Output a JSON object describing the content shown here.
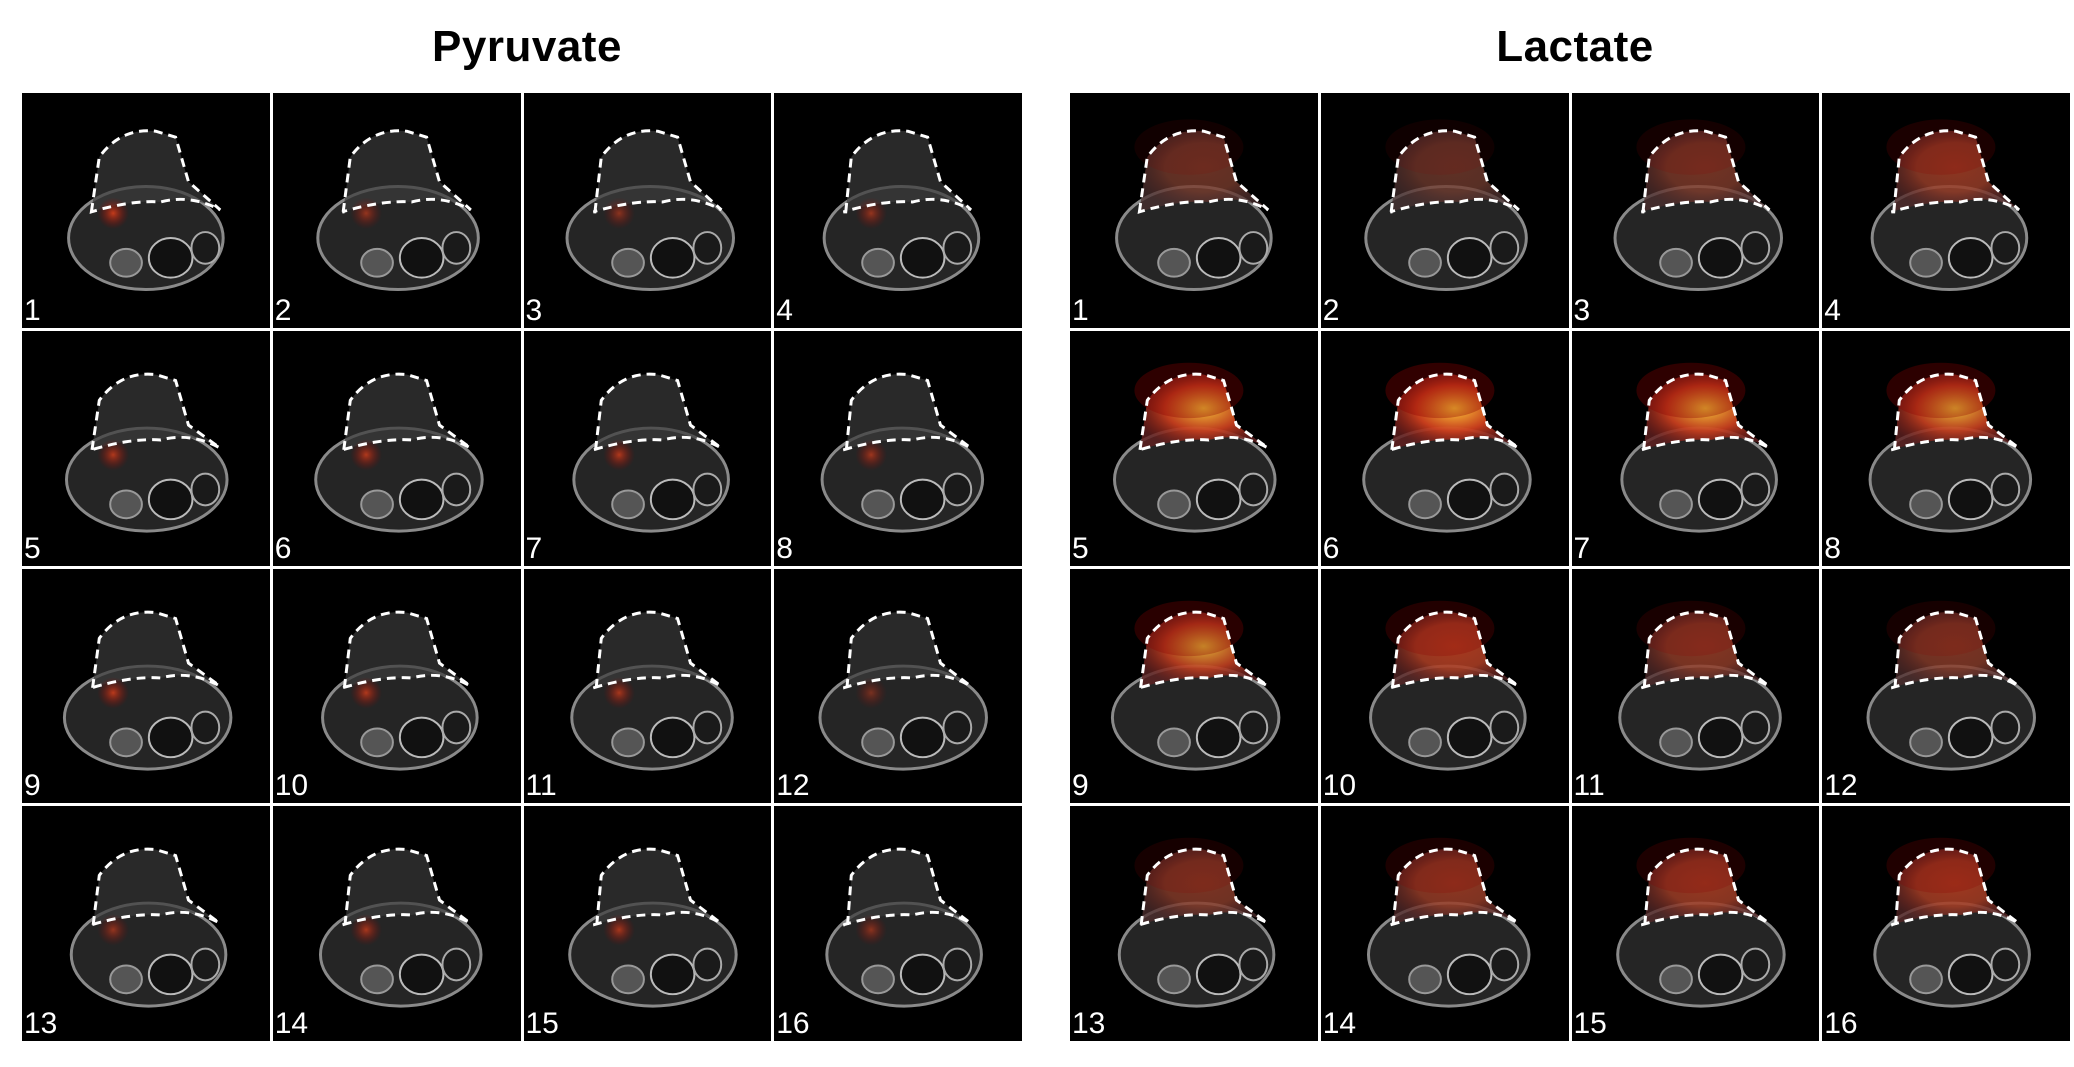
{
  "panels": [
    {
      "title": "Pyruvate",
      "kind": "pyruvate",
      "slices": [
        {
          "label": "1",
          "tumor_intensity": 0.05,
          "hot_spot": 0.85
        },
        {
          "label": "2",
          "tumor_intensity": 0.05,
          "hot_spot": 0.6
        },
        {
          "label": "3",
          "tumor_intensity": 0.05,
          "hot_spot": 0.55
        },
        {
          "label": "4",
          "tumor_intensity": 0.05,
          "hot_spot": 0.6
        },
        {
          "label": "5",
          "tumor_intensity": 0.05,
          "hot_spot": 0.75
        },
        {
          "label": "6",
          "tumor_intensity": 0.05,
          "hot_spot": 0.75
        },
        {
          "label": "7",
          "tumor_intensity": 0.05,
          "hot_spot": 0.75
        },
        {
          "label": "8",
          "tumor_intensity": 0.05,
          "hot_spot": 0.65
        },
        {
          "label": "9",
          "tumor_intensity": 0.05,
          "hot_spot": 0.8
        },
        {
          "label": "10",
          "tumor_intensity": 0.05,
          "hot_spot": 0.75
        },
        {
          "label": "11",
          "tumor_intensity": 0.05,
          "hot_spot": 0.7
        },
        {
          "label": "12",
          "tumor_intensity": 0.05,
          "hot_spot": 0.45
        },
        {
          "label": "13",
          "tumor_intensity": 0.05,
          "hot_spot": 0.6
        },
        {
          "label": "14",
          "tumor_intensity": 0.05,
          "hot_spot": 0.7
        },
        {
          "label": "15",
          "tumor_intensity": 0.05,
          "hot_spot": 0.7
        },
        {
          "label": "16",
          "tumor_intensity": 0.05,
          "hot_spot": 0.55
        }
      ]
    },
    {
      "title": "Lactate",
      "kind": "lactate",
      "slices": [
        {
          "label": "1",
          "tumor_intensity": 0.35,
          "hot_spot": 0.0
        },
        {
          "label": "2",
          "tumor_intensity": 0.3,
          "hot_spot": 0.0
        },
        {
          "label": "3",
          "tumor_intensity": 0.4,
          "hot_spot": 0.0
        },
        {
          "label": "4",
          "tumor_intensity": 0.55,
          "hot_spot": 0.0
        },
        {
          "label": "5",
          "tumor_intensity": 0.95,
          "hot_spot": 0.0
        },
        {
          "label": "6",
          "tumor_intensity": 1.0,
          "hot_spot": 0.0
        },
        {
          "label": "7",
          "tumor_intensity": 0.95,
          "hot_spot": 0.0
        },
        {
          "label": "8",
          "tumor_intensity": 0.9,
          "hot_spot": 0.0
        },
        {
          "label": "9",
          "tumor_intensity": 0.85,
          "hot_spot": 0.0
        },
        {
          "label": "10",
          "tumor_intensity": 0.7,
          "hot_spot": 0.0
        },
        {
          "label": "11",
          "tumor_intensity": 0.5,
          "hot_spot": 0.0
        },
        {
          "label": "12",
          "tumor_intensity": 0.45,
          "hot_spot": 0.0
        },
        {
          "label": "13",
          "tumor_intensity": 0.45,
          "hot_spot": 0.0
        },
        {
          "label": "14",
          "tumor_intensity": 0.55,
          "hot_spot": 0.0
        },
        {
          "label": "15",
          "tumor_intensity": 0.6,
          "hot_spot": 0.0
        },
        {
          "label": "16",
          "tumor_intensity": 0.65,
          "hot_spot": 0.0
        }
      ]
    }
  ],
  "colors": {
    "background": "#000000",
    "tissue": "#8a8a8a",
    "overlay_low": "#8b0000",
    "overlay_mid": "#e0401a",
    "overlay_high": "#ffd23a",
    "contour": "#ffffff",
    "label": "#ffffff"
  }
}
